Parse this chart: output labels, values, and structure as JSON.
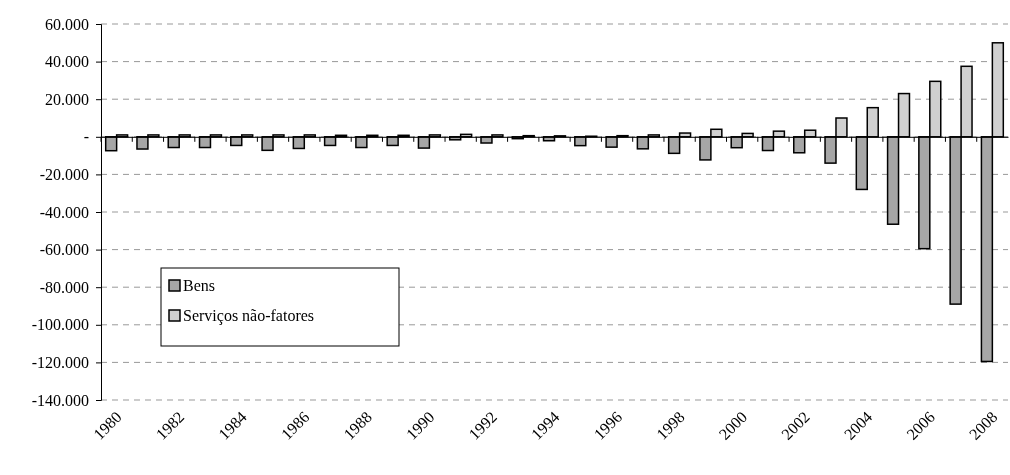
{
  "chart_data": {
    "type": "bar",
    "categories": [
      "1980",
      null,
      "1982",
      null,
      "1984",
      null,
      "1986",
      null,
      "1988",
      null,
      "1990",
      null,
      "1992",
      null,
      "1994",
      null,
      "1996",
      null,
      "1998",
      null,
      "2000",
      null,
      "2002",
      null,
      "2004",
      null,
      "2006",
      null,
      "2008"
    ],
    "series": [
      {
        "name": "Bens",
        "color": "#a6a6a6",
        "values": [
          -7400,
          -6500,
          -5700,
          -5700,
          -4600,
          -7200,
          -6200,
          -4600,
          -5700,
          -4600,
          -6000,
          -1600,
          -3300,
          -1000,
          -2100,
          -4700,
          -5500,
          -6400,
          -8800,
          -12300,
          -5800,
          -7300,
          -8500,
          -14000,
          -28000,
          -46500,
          -59500,
          -89000,
          -119500
        ]
      },
      {
        "name": "Serviços não-fatores",
        "color": "#d0d0d0",
        "values": [
          1000,
          1000,
          1000,
          1000,
          1000,
          1000,
          1000,
          800,
          800,
          800,
          1000,
          1300,
          1000,
          600,
          500,
          300,
          600,
          1000,
          2000,
          4000,
          1800,
          3000,
          3500,
          10000,
          15500,
          23000,
          29500,
          37500,
          50000
        ]
      }
    ],
    "ylim": [
      -140000,
      60000
    ],
    "yticks": [
      {
        "value": -140000,
        "label": "-140.000"
      },
      {
        "value": -120000,
        "label": "-120.000"
      },
      {
        "value": -100000,
        "label": "-100.000"
      },
      {
        "value": -80000,
        "label": "-80.000"
      },
      {
        "value": -60000,
        "label": "-60.000"
      },
      {
        "value": -40000,
        "label": "-40.000"
      },
      {
        "value": -20000,
        "label": "-20.000"
      },
      {
        "value": 0,
        "label": "-"
      },
      {
        "value": 20000,
        "label": "20.000"
      },
      {
        "value": 40000,
        "label": "40.000"
      },
      {
        "value": 60000,
        "label": "60.000"
      }
    ],
    "grid": "y",
    "legend": "bottom left"
  }
}
